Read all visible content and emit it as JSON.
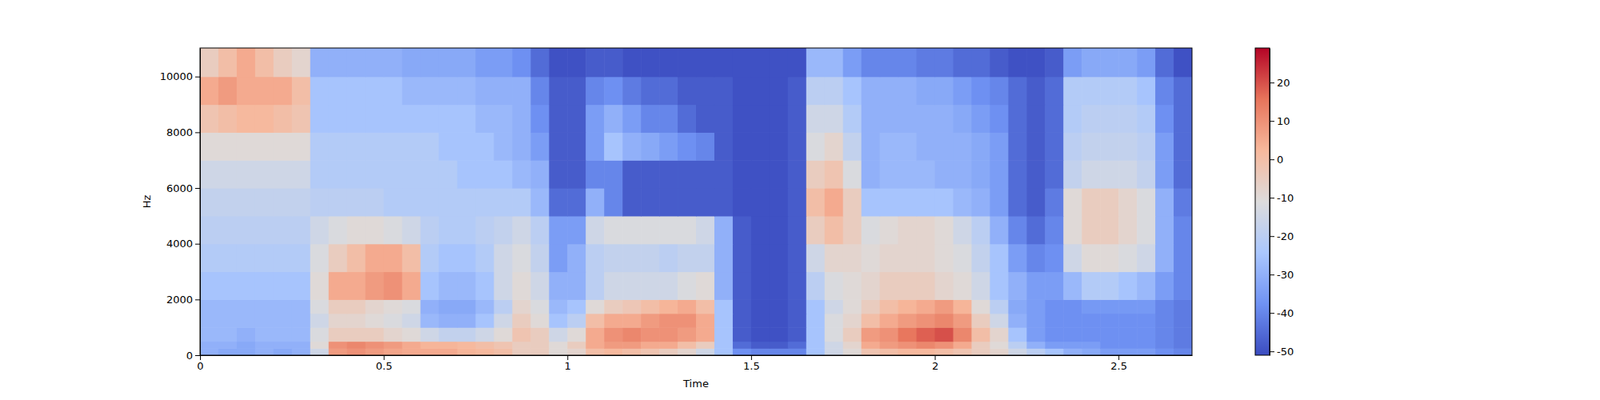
{
  "chart_data": {
    "type": "heatmap",
    "x_label": "Time",
    "y_label": "Hz",
    "xlim": [
      0,
      2.7
    ],
    "xticks": [
      0,
      0.5,
      1,
      1.5,
      2,
      2.5
    ],
    "ylim": [
      0,
      11025
    ],
    "yticks": [
      0,
      2000,
      4000,
      6000,
      8000,
      10000
    ],
    "x_edges": [
      0,
      0.05,
      0.1,
      0.15,
      0.2,
      0.25,
      0.3,
      0.35,
      0.4,
      0.45,
      0.5,
      0.55,
      0.6,
      0.65,
      0.7,
      0.75,
      0.8,
      0.85,
      0.9,
      0.95,
      1.0,
      1.05,
      1.1,
      1.15,
      1.2,
      1.25,
      1.3,
      1.35,
      1.4,
      1.45,
      1.5,
      1.55,
      1.6,
      1.65,
      1.7,
      1.75,
      1.8,
      1.85,
      1.9,
      1.95,
      2.0,
      2.05,
      2.1,
      2.15,
      2.2,
      2.25,
      2.3,
      2.35,
      2.4,
      2.45,
      2.5,
      2.55,
      2.6,
      2.65,
      2.7
    ],
    "y_edges": [
      0,
      250,
      500,
      1000,
      1500,
      2000,
      3000,
      4000,
      5000,
      6000,
      7000,
      8000,
      9000,
      10000,
      11025
    ],
    "values": [
      [
        -30,
        -32,
        -32,
        -30,
        -32,
        -30,
        -15,
        8,
        10,
        8,
        6,
        5,
        5,
        5,
        3,
        2,
        0,
        -5,
        -5,
        -10,
        -8,
        0,
        2,
        0,
        -2,
        -5,
        -8,
        -15,
        -25,
        -38,
        -40,
        -40,
        -40,
        -25,
        -15,
        -10,
        -2,
        0,
        2,
        2,
        0,
        -2,
        -5,
        -8,
        -15,
        -20,
        -25,
        -30,
        -32,
        -35,
        -35,
        -35,
        -38,
        -40
      ],
      [
        -30,
        -30,
        -32,
        -30,
        -30,
        -30,
        -10,
        10,
        12,
        10,
        8,
        5,
        3,
        3,
        2,
        0,
        -2,
        -5,
        -5,
        -10,
        -5,
        5,
        8,
        8,
        5,
        5,
        0,
        -5,
        -25,
        -45,
        -48,
        -48,
        -45,
        -25,
        -15,
        -8,
        5,
        8,
        10,
        12,
        10,
        5,
        -5,
        -10,
        -20,
        -30,
        -35,
        -35,
        -35,
        -38,
        -38,
        -38,
        -40,
        -42
      ],
      [
        -28,
        -28,
        -30,
        -28,
        -28,
        -28,
        -12,
        -5,
        -5,
        -5,
        -8,
        -10,
        -15,
        -18,
        -18,
        -15,
        -10,
        -2,
        -5,
        -15,
        -10,
        5,
        10,
        12,
        10,
        10,
        8,
        5,
        -25,
        -48,
        -50,
        -50,
        -48,
        -25,
        -12,
        -5,
        8,
        10,
        15,
        18,
        20,
        12,
        0,
        -8,
        -25,
        -35,
        -38,
        -38,
        -38,
        -38,
        -38,
        -38,
        -40,
        -42
      ],
      [
        -28,
        -28,
        -28,
        -28,
        -28,
        -28,
        -15,
        -8,
        -8,
        -10,
        -12,
        -15,
        -28,
        -30,
        -30,
        -25,
        -15,
        -5,
        -10,
        -25,
        -20,
        0,
        5,
        5,
        8,
        10,
        10,
        5,
        -25,
        -48,
        -50,
        -50,
        -48,
        -25,
        -12,
        -8,
        0,
        5,
        8,
        10,
        12,
        8,
        -5,
        -15,
        -30,
        -35,
        -38,
        -38,
        -38,
        -38,
        -38,
        -38,
        -40,
        -42
      ],
      [
        -28,
        -28,
        -28,
        -28,
        -28,
        -28,
        -12,
        -5,
        -5,
        -8,
        -10,
        -12,
        -30,
        -32,
        -32,
        -28,
        -20,
        -8,
        -12,
        -28,
        -25,
        -10,
        -5,
        -3,
        0,
        3,
        5,
        0,
        -25,
        -48,
        -50,
        -50,
        -48,
        -25,
        -15,
        -10,
        -5,
        0,
        3,
        5,
        8,
        3,
        -10,
        -20,
        -32,
        -35,
        -38,
        -38,
        -36,
        -36,
        -36,
        -36,
        -40,
        -42
      ],
      [
        -25,
        -25,
        -25,
        -25,
        -25,
        -25,
        -10,
        5,
        5,
        8,
        10,
        5,
        -25,
        -28,
        -28,
        -25,
        -15,
        -10,
        -15,
        -30,
        -30,
        -20,
        -15,
        -15,
        -15,
        -15,
        -12,
        -10,
        -30,
        -48,
        -50,
        -50,
        -48,
        -20,
        -12,
        -10,
        -8,
        -5,
        -5,
        -5,
        -8,
        -10,
        -15,
        -25,
        -30,
        -35,
        -35,
        -28,
        -22,
        -22,
        -25,
        -28,
        -35,
        -40
      ],
      [
        -22,
        -22,
        -22,
        -22,
        -22,
        -22,
        -12,
        -5,
        0,
        5,
        5,
        0,
        -22,
        -25,
        -25,
        -22,
        -15,
        -12,
        -18,
        -35,
        -30,
        -20,
        -18,
        -18,
        -18,
        -20,
        -18,
        -18,
        -30,
        -48,
        -50,
        -50,
        -48,
        -15,
        -8,
        -8,
        -10,
        -8,
        -8,
        -8,
        -10,
        -12,
        -18,
        -25,
        -35,
        -40,
        -38,
        -15,
        -10,
        -10,
        -12,
        -15,
        -30,
        -40
      ],
      [
        -20,
        -20,
        -20,
        -20,
        -20,
        -20,
        -15,
        -12,
        -10,
        -10,
        -12,
        -15,
        -20,
        -22,
        -22,
        -20,
        -18,
        -15,
        -20,
        -35,
        -35,
        -15,
        -12,
        -12,
        -12,
        -12,
        -12,
        -15,
        -30,
        -48,
        -50,
        -50,
        -48,
        -5,
        0,
        -5,
        -12,
        -10,
        -8,
        -8,
        -10,
        -15,
        -20,
        -30,
        -40,
        -45,
        -40,
        -10,
        -5,
        -5,
        -8,
        -12,
        -30,
        -40
      ],
      [
        -18,
        -18,
        -18,
        -18,
        -18,
        -18,
        -20,
        -20,
        -20,
        -20,
        -22,
        -22,
        -22,
        -22,
        -22,
        -22,
        -22,
        -22,
        -28,
        -45,
        -45,
        -30,
        -40,
        -48,
        -48,
        -48,
        -48,
        -48,
        -48,
        -50,
        -50,
        -50,
        -48,
        0,
        5,
        -5,
        -25,
        -25,
        -25,
        -25,
        -25,
        -28,
        -30,
        -35,
        -45,
        -48,
        -42,
        -10,
        -5,
        -5,
        -8,
        -12,
        -30,
        -42
      ],
      [
        -15,
        -15,
        -15,
        -15,
        -15,
        -15,
        -22,
        -22,
        -22,
        -22,
        -22,
        -22,
        -22,
        -22,
        -25,
        -25,
        -25,
        -28,
        -30,
        -48,
        -48,
        -40,
        -40,
        -48,
        -48,
        -48,
        -48,
        -48,
        -48,
        -50,
        -50,
        -50,
        -48,
        -5,
        -2,
        -12,
        -30,
        -28,
        -28,
        -28,
        -30,
        -30,
        -32,
        -35,
        -45,
        -48,
        -45,
        -18,
        -15,
        -15,
        -15,
        -18,
        -35,
        -45
      ],
      [
        -10,
        -10,
        -10,
        -10,
        -10,
        -10,
        -22,
        -22,
        -22,
        -22,
        -22,
        -22,
        -22,
        -25,
        -25,
        -25,
        -28,
        -30,
        -35,
        -48,
        -48,
        -35,
        -25,
        -30,
        -32,
        -35,
        -38,
        -40,
        -48,
        -50,
        -50,
        -50,
        -48,
        -12,
        -8,
        -18,
        -30,
        -28,
        -28,
        -30,
        -30,
        -30,
        -32,
        -35,
        -45,
        -48,
        -45,
        -20,
        -18,
        -18,
        -18,
        -20,
        -35,
        -45
      ],
      [
        -2,
        0,
        2,
        2,
        0,
        -2,
        -25,
        -25,
        -25,
        -25,
        -25,
        -25,
        -25,
        -25,
        -25,
        -28,
        -28,
        -30,
        -38,
        -48,
        -48,
        -35,
        -30,
        -35,
        -40,
        -40,
        -45,
        -48,
        -48,
        -50,
        -50,
        -50,
        -48,
        -15,
        -15,
        -22,
        -30,
        -30,
        -30,
        -30,
        -30,
        -32,
        -35,
        -38,
        -45,
        -48,
        -45,
        -22,
        -20,
        -20,
        -20,
        -22,
        -38,
        -45
      ],
      [
        5,
        8,
        5,
        5,
        5,
        0,
        -25,
        -25,
        -25,
        -25,
        -25,
        -28,
        -28,
        -28,
        -28,
        -30,
        -30,
        -30,
        -40,
        -48,
        -48,
        -40,
        -38,
        -42,
        -45,
        -45,
        -48,
        -48,
        -48,
        -50,
        -50,
        -50,
        -48,
        -20,
        -20,
        -25,
        -30,
        -30,
        -30,
        -32,
        -32,
        -35,
        -38,
        -40,
        -45,
        -48,
        -45,
        -22,
        -22,
        -22,
        -22,
        -25,
        -40,
        -45
      ],
      [
        -5,
        0,
        5,
        0,
        -5,
        -8,
        -30,
        -30,
        -30,
        -30,
        -30,
        -32,
        -32,
        -32,
        -32,
        -35,
        -35,
        -38,
        -45,
        -50,
        -50,
        -48,
        -48,
        -50,
        -50,
        -50,
        -50,
        -50,
        -50,
        -50,
        -50,
        -50,
        -50,
        -28,
        -28,
        -35,
        -40,
        -40,
        -40,
        -42,
        -42,
        -45,
        -45,
        -48,
        -50,
        -50,
        -48,
        -35,
        -32,
        -32,
        -32,
        -35,
        -45,
        -50
      ]
    ],
    "colorbar": {
      "range": [
        -51,
        29
      ],
      "ticks": [
        -50,
        -40,
        -30,
        -20,
        -10,
        0,
        10,
        20
      ]
    }
  }
}
